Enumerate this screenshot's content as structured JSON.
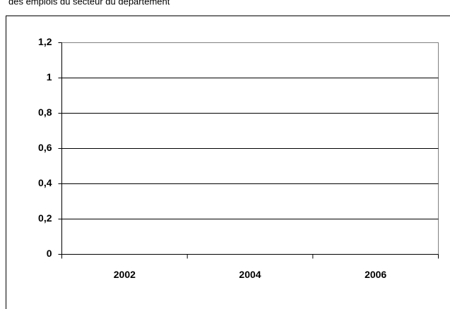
{
  "title": "des emplois du secteur du département",
  "chart_data": {
    "type": "bar",
    "categories": [
      "2002",
      "2004",
      "2006"
    ],
    "ylim": [
      0,
      1.2
    ],
    "yticks": [
      0,
      {
        "value": 0.2,
        "label": "0,2"
      },
      {
        "value": 0.4,
        "label": "0,4"
      },
      {
        "value": 0.6,
        "label": "0,6"
      },
      {
        "value": 0.8,
        "label": "0,8"
      },
      1,
      {
        "value": 1.2,
        "label": "1,2"
      }
    ],
    "grid": true
  }
}
